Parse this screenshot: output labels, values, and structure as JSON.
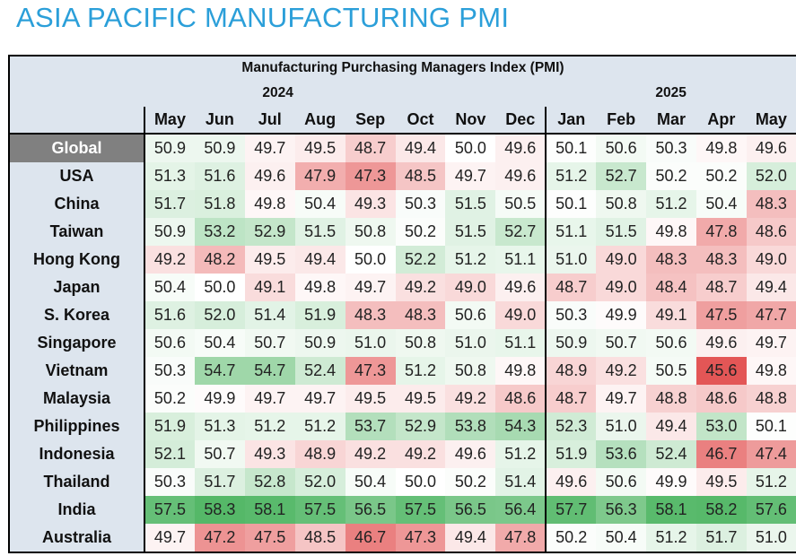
{
  "page": {
    "title": "ASIA PACIFIC MANUFACTURING PMI"
  },
  "chart_data": {
    "type": "heatmap",
    "title": "Manufacturing Purchasing Managers Index (PMI)",
    "years": [
      {
        "label": "2024",
        "months": [
          "May",
          "Jun",
          "Jul",
          "Aug",
          "Sep",
          "Oct",
          "Nov",
          "Dec"
        ]
      },
      {
        "label": "2025",
        "months": [
          "Jan",
          "Feb",
          "Mar",
          "Apr",
          "May"
        ]
      }
    ],
    "columns": [
      "May",
      "Jun",
      "Jul",
      "Aug",
      "Sep",
      "Oct",
      "Nov",
      "Dec",
      "Jan",
      "Feb",
      "Mar",
      "Apr",
      "May"
    ],
    "color_scale": {
      "low": "#e35656",
      "mid": "#ffffff",
      "high": "#55b868",
      "midpoint": 50
    },
    "rows": [
      {
        "label": "Global",
        "values": [
          50.9,
          50.9,
          49.7,
          49.5,
          48.7,
          49.4,
          50.0,
          49.6,
          50.1,
          50.6,
          50.3,
          49.8,
          49.6
        ]
      },
      {
        "label": "USA",
        "values": [
          51.3,
          51.6,
          49.6,
          47.9,
          47.3,
          48.5,
          49.7,
          49.6,
          51.2,
          52.7,
          50.2,
          50.2,
          52.0
        ]
      },
      {
        "label": "China",
        "values": [
          51.7,
          51.8,
          49.8,
          50.4,
          49.3,
          50.3,
          51.5,
          50.5,
          50.1,
          50.8,
          51.2,
          50.4,
          48.3
        ]
      },
      {
        "label": "Taiwan",
        "values": [
          50.9,
          53.2,
          52.9,
          51.5,
          50.8,
          50.2,
          51.5,
          52.7,
          51.1,
          51.5,
          49.8,
          47.8,
          48.6
        ]
      },
      {
        "label": "Hong Kong",
        "values": [
          49.2,
          48.2,
          49.5,
          49.4,
          50.0,
          52.2,
          51.2,
          51.1,
          51.0,
          49.0,
          48.3,
          48.3,
          49.0
        ]
      },
      {
        "label": "Japan",
        "values": [
          50.4,
          50.0,
          49.1,
          49.8,
          49.7,
          49.2,
          49.0,
          49.6,
          48.7,
          49.0,
          48.4,
          48.7,
          49.4
        ]
      },
      {
        "label": "S. Korea",
        "values": [
          51.6,
          52.0,
          51.4,
          51.9,
          48.3,
          48.3,
          50.6,
          49.0,
          50.3,
          49.9,
          49.1,
          47.5,
          47.7
        ]
      },
      {
        "label": "Singapore",
        "values": [
          50.6,
          50.4,
          50.7,
          50.9,
          51.0,
          50.8,
          51.0,
          51.1,
          50.9,
          50.7,
          50.6,
          49.6,
          49.7
        ]
      },
      {
        "label": "Vietnam",
        "values": [
          50.3,
          54.7,
          54.7,
          52.4,
          47.3,
          51.2,
          50.8,
          49.8,
          48.9,
          49.2,
          50.5,
          45.6,
          49.8
        ]
      },
      {
        "label": "Malaysia",
        "values": [
          50.2,
          49.9,
          49.7,
          49.7,
          49.5,
          49.5,
          49.2,
          48.6,
          48.7,
          49.7,
          48.8,
          48.6,
          48.8
        ]
      },
      {
        "label": "Philippines",
        "values": [
          51.9,
          51.3,
          51.2,
          51.2,
          53.7,
          52.9,
          53.8,
          54.3,
          52.3,
          51.0,
          49.4,
          53.0,
          50.1
        ]
      },
      {
        "label": "Indonesia",
        "values": [
          52.1,
          50.7,
          49.3,
          48.9,
          49.2,
          49.2,
          49.6,
          51.2,
          51.9,
          53.6,
          52.4,
          46.7,
          47.4
        ]
      },
      {
        "label": "Thailand",
        "values": [
          50.3,
          51.7,
          52.8,
          52.0,
          50.4,
          50.0,
          50.2,
          51.4,
          49.6,
          50.6,
          49.9,
          49.5,
          51.2
        ]
      },
      {
        "label": "India",
        "values": [
          57.5,
          58.3,
          58.1,
          57.5,
          56.5,
          57.5,
          56.5,
          56.4,
          57.7,
          56.3,
          58.1,
          58.2,
          57.6
        ]
      },
      {
        "label": "Australia",
        "values": [
          49.7,
          47.2,
          47.5,
          48.5,
          46.7,
          47.3,
          49.4,
          47.8,
          50.2,
          50.4,
          51.2,
          51.7,
          51.0
        ]
      }
    ]
  }
}
